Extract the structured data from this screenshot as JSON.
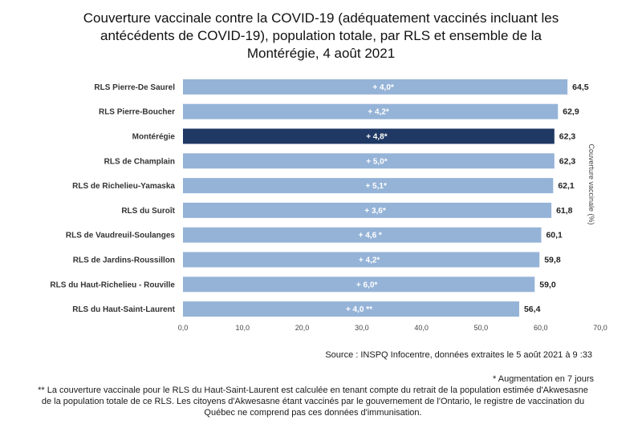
{
  "title_lines": [
    "Couverture vaccinale contre la COVID-19 (adéquatement vaccinés incluant les",
    "antécédents de COVID-19), population totale, par RLS et ensemble de la",
    "Montérégie, 4 août 2021"
  ],
  "chart_data": {
    "type": "bar",
    "orientation": "horizontal",
    "categories": [
      "RLS Pierre-De Saurel",
      "RLS Pierre-Boucher",
      "Montérégie",
      "RLS de Champlain",
      "RLS de Richelieu-Yamaska",
      "RLS du Suroît",
      "RLS de Vaudreuil-Soulanges",
      "RLS de Jardins-Roussillon",
      "RLS du Haut-Richelieu - Rouville",
      "RLS du Haut-Saint-Laurent"
    ],
    "values": [
      64.5,
      62.9,
      62.3,
      62.3,
      62.1,
      61.8,
      60.1,
      59.8,
      59.0,
      56.4
    ],
    "value_labels": [
      "64,5",
      "62,9",
      "62,3",
      "62,3",
      "62,1",
      "61,8",
      "60,1",
      "59,8",
      "59,0",
      "56,4"
    ],
    "bar_labels": [
      "+ 4,0*",
      "+ 4,2*",
      "+ 4,8*",
      "+ 5,0*",
      "+ 5,1*",
      "+ 3,6*",
      "+ 4,6 *",
      "+ 4,2*",
      "+ 6,0*",
      "+ 4,0 **"
    ],
    "highlight_index": 2,
    "xlim": [
      0,
      70
    ],
    "xticks": [
      "0,0",
      "10,0",
      "20,0",
      "30,0",
      "40,0",
      "50,0",
      "60,0",
      "70,0"
    ],
    "ylabel": "Couverture vaccinale (%)",
    "colors": {
      "bar": "#95b3d7",
      "highlight": "#1f3864"
    },
    "grid": false
  },
  "source": "Source : INSPQ Infocentre, données extraites le 5 août 2021 à 9 :33",
  "footnotes": [
    "* Augmentation en 7 jours",
    "** La couverture vaccinale pour le RLS du Haut-Saint-Laurent est calculée en tenant compte du retrait de la population estimée d'Akwesasne de la population totale de ce RLS. Les citoyens d'Akwesasne étant vaccinés par le gouvernement de l'Ontario, le registre de vaccination du Québec ne comprend pas ces données d'immunisation."
  ]
}
